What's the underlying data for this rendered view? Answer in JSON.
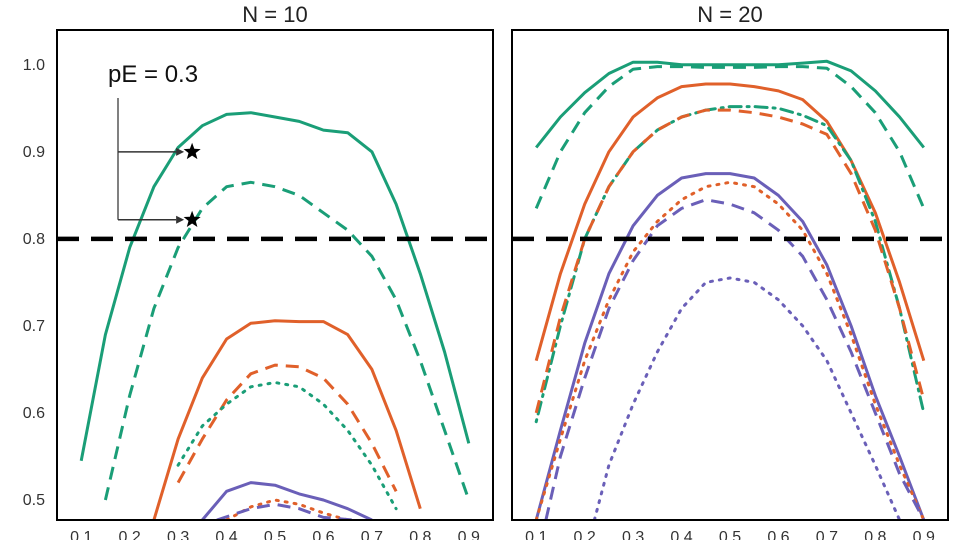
{
  "chart_data": [
    {
      "type": "line",
      "title": "N = 10",
      "xlim": [
        0.05,
        0.95
      ],
      "ylim": [
        0.477,
        1.04
      ],
      "x_ticks": [
        "0.1",
        "0.2",
        "0.3",
        "0.4",
        "0.5",
        "0.6",
        "0.7",
        "0.8",
        "0.9"
      ],
      "y_ticks": [
        "0.5",
        "0.6",
        "0.7",
        "0.8",
        "0.9",
        "1.0"
      ],
      "reference_line": {
        "y": 0.8,
        "style": "dashed",
        "color": "#000000"
      },
      "annotation": {
        "text": "pE = 0.3",
        "points": [
          {
            "x": 0.3,
            "y": 0.9
          },
          {
            "x": 0.3,
            "y": 0.822
          }
        ]
      },
      "series": [
        {
          "color": "#1a9e77",
          "style": "solid",
          "x": [
            0.1,
            0.15,
            0.2,
            0.25,
            0.3,
            0.35,
            0.4,
            0.45,
            0.5,
            0.55,
            0.6,
            0.65,
            0.7,
            0.75,
            0.8,
            0.85,
            0.9
          ],
          "y": [
            0.545,
            0.69,
            0.79,
            0.86,
            0.905,
            0.93,
            0.943,
            0.945,
            0.94,
            0.935,
            0.925,
            0.922,
            0.9,
            0.84,
            0.76,
            0.67,
            0.565
          ]
        },
        {
          "color": "#1a9e77",
          "style": "dashed",
          "x": [
            0.15,
            0.2,
            0.25,
            0.3,
            0.35,
            0.4,
            0.45,
            0.5,
            0.55,
            0.6,
            0.65,
            0.7,
            0.75,
            0.8,
            0.85,
            0.9
          ],
          "y": [
            0.5,
            0.62,
            0.72,
            0.79,
            0.835,
            0.86,
            0.865,
            0.86,
            0.85,
            0.83,
            0.81,
            0.78,
            0.73,
            0.66,
            0.58,
            0.5
          ]
        },
        {
          "color": "#e0602a",
          "style": "solid",
          "x": [
            0.25,
            0.3,
            0.35,
            0.4,
            0.45,
            0.5,
            0.55,
            0.6,
            0.65,
            0.7,
            0.75,
            0.8
          ],
          "y": [
            0.477,
            0.57,
            0.64,
            0.685,
            0.703,
            0.706,
            0.705,
            0.705,
            0.69,
            0.65,
            0.58,
            0.49
          ]
        },
        {
          "color": "#e0602a",
          "style": "dashed",
          "x": [
            0.3,
            0.35,
            0.4,
            0.45,
            0.5,
            0.55,
            0.6,
            0.65,
            0.7,
            0.75
          ],
          "y": [
            0.52,
            0.57,
            0.615,
            0.645,
            0.655,
            0.653,
            0.64,
            0.61,
            0.565,
            0.51
          ]
        },
        {
          "color": "#1a9e77",
          "style": "dotted",
          "x": [
            0.3,
            0.35,
            0.4,
            0.45,
            0.5,
            0.55,
            0.6,
            0.65,
            0.7,
            0.75
          ],
          "y": [
            0.54,
            0.585,
            0.61,
            0.63,
            0.635,
            0.63,
            0.61,
            0.58,
            0.54,
            0.49
          ]
        },
        {
          "color": "#6a5fb8",
          "style": "solid",
          "x": [
            0.35,
            0.4,
            0.45,
            0.5,
            0.55,
            0.6,
            0.65,
            0.7
          ],
          "y": [
            0.477,
            0.51,
            0.52,
            0.517,
            0.507,
            0.5,
            0.49,
            0.477
          ]
        },
        {
          "color": "#e0602a",
          "style": "dotted",
          "x": [
            0.4,
            0.45,
            0.5,
            0.55,
            0.6,
            0.65
          ],
          "y": [
            0.477,
            0.492,
            0.5,
            0.495,
            0.485,
            0.477
          ]
        },
        {
          "color": "#6a5fb8",
          "style": "dashed",
          "x": [
            0.38,
            0.45,
            0.5,
            0.55,
            0.6,
            0.66
          ],
          "y": [
            0.477,
            0.49,
            0.495,
            0.49,
            0.48,
            0.477
          ]
        }
      ]
    },
    {
      "type": "line",
      "title": "N = 20",
      "xlim": [
        0.05,
        0.95
      ],
      "ylim": [
        0.477,
        1.04
      ],
      "x_ticks": [
        "0.1",
        "0.2",
        "0.3",
        "0.4",
        "0.5",
        "0.6",
        "0.7",
        "0.8",
        "0.9"
      ],
      "y_ticks": [
        "0.5",
        "0.6",
        "0.7",
        "0.8",
        "0.9",
        "1.0"
      ],
      "reference_line": {
        "y": 0.8,
        "style": "dashed",
        "color": "#000000"
      },
      "series": [
        {
          "color": "#1a9e77",
          "style": "solid",
          "x": [
            0.1,
            0.15,
            0.2,
            0.25,
            0.3,
            0.35,
            0.4,
            0.45,
            0.5,
            0.55,
            0.6,
            0.65,
            0.7,
            0.75,
            0.8,
            0.85,
            0.9
          ],
          "y": [
            0.905,
            0.94,
            0.968,
            0.99,
            1.003,
            1.003,
            1.0,
            1.0,
            1.0,
            1.0,
            1.0,
            1.002,
            1.004,
            0.993,
            0.97,
            0.94,
            0.905
          ]
        },
        {
          "color": "#1a9e77",
          "style": "dashed",
          "x": [
            0.1,
            0.15,
            0.2,
            0.25,
            0.3,
            0.35,
            0.4,
            0.45,
            0.5,
            0.55,
            0.6,
            0.65,
            0.7,
            0.75,
            0.8,
            0.85,
            0.9
          ],
          "y": [
            0.835,
            0.9,
            0.945,
            0.975,
            0.995,
            0.998,
            0.998,
            0.997,
            0.997,
            0.997,
            0.998,
            0.998,
            0.996,
            0.975,
            0.945,
            0.9,
            0.835
          ]
        },
        {
          "color": "#e0602a",
          "style": "solid",
          "x": [
            0.1,
            0.15,
            0.2,
            0.25,
            0.3,
            0.35,
            0.4,
            0.45,
            0.5,
            0.55,
            0.6,
            0.65,
            0.7,
            0.75,
            0.8,
            0.85,
            0.9
          ],
          "y": [
            0.66,
            0.76,
            0.84,
            0.9,
            0.94,
            0.962,
            0.975,
            0.978,
            0.978,
            0.975,
            0.97,
            0.96,
            0.935,
            0.89,
            0.83,
            0.75,
            0.66
          ]
        },
        {
          "color": "#1a9e77",
          "style": "dotdash",
          "x": [
            0.1,
            0.15,
            0.2,
            0.25,
            0.3,
            0.35,
            0.4,
            0.45,
            0.5,
            0.55,
            0.6,
            0.65,
            0.7,
            0.75,
            0.8,
            0.85,
            0.9
          ],
          "y": [
            0.59,
            0.7,
            0.8,
            0.86,
            0.9,
            0.925,
            0.94,
            0.948,
            0.952,
            0.952,
            0.95,
            0.942,
            0.93,
            0.89,
            0.82,
            0.72,
            0.6
          ]
        },
        {
          "color": "#e0602a",
          "style": "dashed",
          "x": [
            0.1,
            0.15,
            0.2,
            0.25,
            0.3,
            0.35,
            0.4,
            0.45,
            0.5,
            0.55,
            0.6,
            0.65,
            0.7,
            0.75,
            0.8,
            0.85,
            0.9
          ],
          "y": [
            0.6,
            0.71,
            0.8,
            0.86,
            0.9,
            0.925,
            0.94,
            0.948,
            0.948,
            0.945,
            0.94,
            0.932,
            0.92,
            0.875,
            0.81,
            0.72,
            0.615
          ]
        },
        {
          "color": "#6a5fb8",
          "style": "solid",
          "x": [
            0.1,
            0.15,
            0.2,
            0.25,
            0.3,
            0.35,
            0.4,
            0.45,
            0.5,
            0.55,
            0.6,
            0.65,
            0.7,
            0.75,
            0.8,
            0.85,
            0.9
          ],
          "y": [
            0.477,
            0.58,
            0.68,
            0.76,
            0.815,
            0.85,
            0.87,
            0.875,
            0.875,
            0.87,
            0.85,
            0.82,
            0.77,
            0.7,
            0.62,
            0.55,
            0.477
          ]
        },
        {
          "color": "#e0602a",
          "style": "dotted",
          "x": [
            0.1,
            0.15,
            0.2,
            0.25,
            0.3,
            0.35,
            0.4,
            0.45,
            0.5,
            0.55,
            0.6,
            0.65,
            0.7,
            0.75,
            0.8,
            0.85,
            0.9
          ],
          "y": [
            0.477,
            0.57,
            0.66,
            0.73,
            0.785,
            0.82,
            0.845,
            0.86,
            0.865,
            0.86,
            0.84,
            0.81,
            0.76,
            0.69,
            0.61,
            0.54,
            0.477
          ]
        },
        {
          "color": "#6a5fb8",
          "style": "dashed",
          "x": [
            0.12,
            0.15,
            0.2,
            0.25,
            0.3,
            0.35,
            0.4,
            0.45,
            0.5,
            0.55,
            0.6,
            0.65,
            0.7,
            0.75,
            0.8,
            0.85,
            0.9
          ],
          "y": [
            0.477,
            0.55,
            0.64,
            0.72,
            0.775,
            0.815,
            0.835,
            0.845,
            0.84,
            0.83,
            0.81,
            0.78,
            0.73,
            0.67,
            0.6,
            0.53,
            0.477
          ]
        },
        {
          "color": "#6a5fb8",
          "style": "dotted",
          "x": [
            0.22,
            0.25,
            0.3,
            0.35,
            0.4,
            0.45,
            0.5,
            0.55,
            0.6,
            0.65,
            0.7,
            0.75,
            0.8,
            0.85
          ],
          "y": [
            0.477,
            0.54,
            0.61,
            0.67,
            0.72,
            0.75,
            0.755,
            0.75,
            0.73,
            0.7,
            0.66,
            0.6,
            0.54,
            0.477
          ]
        }
      ]
    }
  ]
}
